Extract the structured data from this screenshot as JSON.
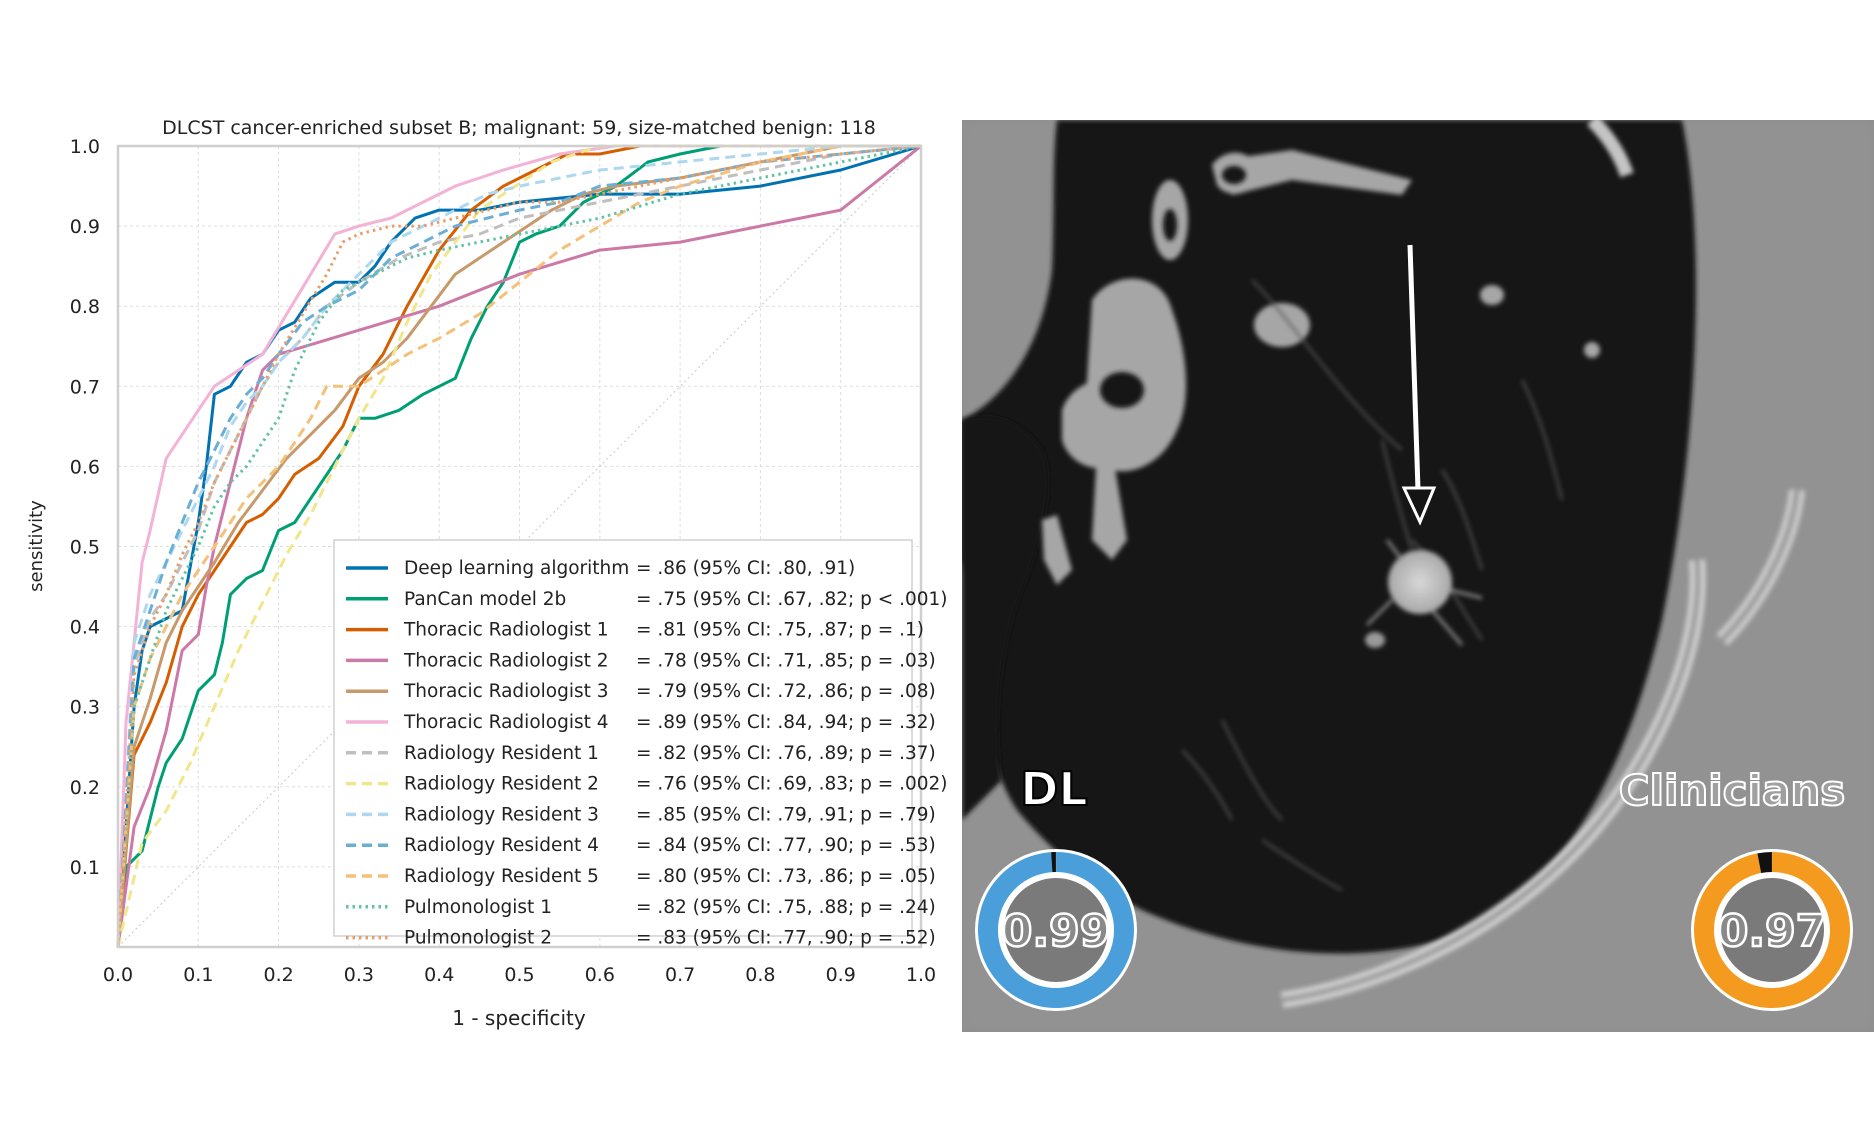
{
  "chart_data": {
    "type": "line",
    "title": "DLCST cancer-enriched subset B; malignant: 59, size-matched benign: 118",
    "xlabel": "1 - specificity",
    "ylabel": "sensitivity",
    "xlim": [
      0,
      1
    ],
    "ylim": [
      0,
      1
    ],
    "x_ticks": [
      "0.0",
      "0.1",
      "0.2",
      "0.3",
      "0.4",
      "0.5",
      "0.6",
      "0.7",
      "0.8",
      "0.9",
      "1.0"
    ],
    "y_ticks": [
      "0.1",
      "0.2",
      "0.3",
      "0.4",
      "0.5",
      "0.6",
      "0.7",
      "0.8",
      "0.9",
      "1.0"
    ],
    "grid": true,
    "legend_position": "bottom-right",
    "series": [
      {
        "name": "Deep learning algorithm",
        "stat": "= .86 (95% CI: .80, .91)",
        "color": "#0072B2",
        "dash": "solid",
        "x": [
          0,
          0.02,
          0.03,
          0.04,
          0.06,
          0.08,
          0.1,
          0.11,
          0.12,
          0.14,
          0.16,
          0.18,
          0.2,
          0.22,
          0.24,
          0.27,
          0.3,
          0.32,
          0.34,
          0.37,
          0.4,
          0.45,
          0.5,
          0.6,
          0.7,
          0.8,
          0.9,
          1.0
        ],
        "y": [
          0,
          0.3,
          0.37,
          0.4,
          0.41,
          0.42,
          0.53,
          0.6,
          0.69,
          0.7,
          0.73,
          0.74,
          0.77,
          0.78,
          0.81,
          0.83,
          0.83,
          0.85,
          0.88,
          0.91,
          0.92,
          0.92,
          0.93,
          0.94,
          0.94,
          0.95,
          0.97,
          1.0
        ]
      },
      {
        "name": "PanCan model 2b",
        "stat": "= .75 (95% CI: .67, .82; p < .001)",
        "color": "#009E73",
        "dash": "solid",
        "x": [
          0,
          0.01,
          0.02,
          0.03,
          0.05,
          0.06,
          0.08,
          0.1,
          0.12,
          0.13,
          0.14,
          0.16,
          0.18,
          0.2,
          0.22,
          0.24,
          0.26,
          0.28,
          0.3,
          0.32,
          0.35,
          0.38,
          0.4,
          0.42,
          0.44,
          0.46,
          0.48,
          0.5,
          0.52,
          0.55,
          0.58,
          0.62,
          0.66,
          0.7,
          0.75,
          0.8,
          0.9,
          1.0
        ],
        "y": [
          0,
          0.1,
          0.11,
          0.12,
          0.2,
          0.23,
          0.26,
          0.32,
          0.34,
          0.38,
          0.44,
          0.46,
          0.47,
          0.52,
          0.53,
          0.56,
          0.59,
          0.62,
          0.66,
          0.66,
          0.67,
          0.69,
          0.7,
          0.71,
          0.76,
          0.8,
          0.83,
          0.88,
          0.89,
          0.9,
          0.93,
          0.95,
          0.98,
          0.99,
          1.0,
          1.0,
          1.0,
          1.0
        ]
      },
      {
        "name": "Thoracic Radiologist 1",
        "stat": "= .81 (95% CI: .75, .87; p = .1)",
        "color": "#D55E00",
        "dash": "solid",
        "x": [
          0,
          0.02,
          0.04,
          0.06,
          0.08,
          0.1,
          0.12,
          0.14,
          0.16,
          0.18,
          0.2,
          0.22,
          0.25,
          0.28,
          0.3,
          0.33,
          0.36,
          0.4,
          0.44,
          0.48,
          0.52,
          0.56,
          0.6,
          0.65,
          0.7,
          0.8,
          0.9,
          1.0
        ],
        "y": [
          0,
          0.24,
          0.28,
          0.33,
          0.4,
          0.44,
          0.47,
          0.5,
          0.53,
          0.54,
          0.56,
          0.59,
          0.61,
          0.65,
          0.7,
          0.74,
          0.8,
          0.87,
          0.92,
          0.95,
          0.97,
          0.99,
          0.99,
          1.0,
          1.0,
          1.0,
          1.0,
          1.0
        ]
      },
      {
        "name": "Thoracic Radiologist 2",
        "stat": "= .78 (95% CI: .71, .85; p = .03)",
        "color": "#CC79A7",
        "dash": "solid",
        "x": [
          0,
          0.02,
          0.04,
          0.06,
          0.08,
          0.1,
          0.11,
          0.12,
          0.14,
          0.16,
          0.18,
          0.2,
          0.3,
          0.4,
          0.5,
          0.6,
          0.7,
          0.8,
          0.9,
          1.0
        ],
        "y": [
          0,
          0.15,
          0.2,
          0.27,
          0.37,
          0.39,
          0.45,
          0.5,
          0.58,
          0.66,
          0.72,
          0.74,
          0.77,
          0.8,
          0.84,
          0.87,
          0.88,
          0.9,
          0.92,
          1.0
        ]
      },
      {
        "name": "Thoracic Radiologist 3",
        "stat": "= .79 (95% CI: .72, .86; p = .08)",
        "color": "#C8996B",
        "dash": "solid",
        "x": [
          0,
          0.02,
          0.04,
          0.06,
          0.08,
          0.1,
          0.12,
          0.15,
          0.18,
          0.21,
          0.24,
          0.27,
          0.3,
          0.33,
          0.36,
          0.39,
          0.42,
          0.45,
          0.48,
          0.51,
          0.54,
          0.58,
          0.62,
          0.7,
          0.8,
          0.9,
          1.0
        ],
        "y": [
          0,
          0.25,
          0.31,
          0.38,
          0.42,
          0.45,
          0.48,
          0.53,
          0.57,
          0.61,
          0.64,
          0.67,
          0.71,
          0.73,
          0.76,
          0.8,
          0.84,
          0.86,
          0.88,
          0.9,
          0.92,
          0.94,
          0.95,
          0.96,
          0.98,
          1.0,
          1.0
        ]
      },
      {
        "name": "Thoracic Radiologist 4",
        "stat": "= .89 (95% CI: .84, .94; p = .32)",
        "color": "#F3B2D6",
        "dash": "solid",
        "x": [
          0,
          0.01,
          0.02,
          0.03,
          0.04,
          0.06,
          0.08,
          0.1,
          0.12,
          0.15,
          0.18,
          0.21,
          0.24,
          0.27,
          0.3,
          0.34,
          0.38,
          0.42,
          0.48,
          0.55,
          0.62,
          0.7,
          0.8,
          0.9,
          1.0
        ],
        "y": [
          0,
          0.28,
          0.38,
          0.48,
          0.52,
          0.61,
          0.64,
          0.67,
          0.7,
          0.72,
          0.74,
          0.79,
          0.84,
          0.89,
          0.9,
          0.91,
          0.93,
          0.95,
          0.97,
          0.99,
          1.0,
          1.0,
          1.0,
          1.0,
          1.0
        ]
      },
      {
        "name": "Radiology Resident 1",
        "stat": "= .82 (95% CI: .76, .89; p = .37)",
        "color": "#BFBFBF",
        "dash": "dashed",
        "x": [
          0,
          0.02,
          0.04,
          0.06,
          0.08,
          0.1,
          0.12,
          0.14,
          0.16,
          0.18,
          0.2,
          0.23,
          0.26,
          0.3,
          0.35,
          0.4,
          0.45,
          0.5,
          0.55,
          0.6,
          0.7,
          0.8,
          0.9,
          1.0
        ],
        "y": [
          0,
          0.35,
          0.41,
          0.44,
          0.48,
          0.52,
          0.58,
          0.62,
          0.66,
          0.7,
          0.73,
          0.76,
          0.8,
          0.83,
          0.86,
          0.88,
          0.89,
          0.91,
          0.92,
          0.93,
          0.95,
          0.97,
          0.99,
          1.0
        ]
      },
      {
        "name": "Radiology Resident 2",
        "stat": "= .76 (95% CI: .69, .83; p = .002)",
        "color": "#F0E68C",
        "dash": "dashed",
        "x": [
          0,
          0.03,
          0.06,
          0.09,
          0.12,
          0.15,
          0.18,
          0.21,
          0.24,
          0.27,
          0.3,
          0.33,
          0.36,
          0.39,
          0.42,
          0.45,
          0.48,
          0.51,
          0.54,
          0.57,
          0.6,
          0.62,
          0.64,
          0.66,
          0.7,
          0.8,
          0.9,
          1.0
        ],
        "y": [
          0,
          0.13,
          0.17,
          0.23,
          0.3,
          0.37,
          0.43,
          0.49,
          0.54,
          0.6,
          0.66,
          0.71,
          0.78,
          0.84,
          0.88,
          0.92,
          0.94,
          0.96,
          0.98,
          0.99,
          1.0,
          1.0,
          1.0,
          1.0,
          1.0,
          1.0,
          1.0,
          1.0
        ]
      },
      {
        "name": "Radiology Resident 3",
        "stat": "= .85 (95% CI: .79, .91; p = .79)",
        "color": "#ADD8F0",
        "dash": "dashed",
        "x": [
          0,
          0.02,
          0.04,
          0.06,
          0.08,
          0.1,
          0.12,
          0.14,
          0.16,
          0.18,
          0.2,
          0.23,
          0.26,
          0.3,
          0.34,
          0.38,
          0.42,
          0.46,
          0.5,
          0.55,
          0.6,
          0.7,
          0.8,
          0.9,
          1.0
        ],
        "y": [
          0,
          0.38,
          0.44,
          0.48,
          0.52,
          0.56,
          0.6,
          0.65,
          0.68,
          0.7,
          0.73,
          0.76,
          0.8,
          0.84,
          0.88,
          0.9,
          0.92,
          0.94,
          0.95,
          0.96,
          0.97,
          0.98,
          0.99,
          1.0,
          1.0
        ]
      },
      {
        "name": "Radiology Resident 4",
        "stat": "= .84 (95% CI: .77, .90; p = .53)",
        "color": "#6BAED6",
        "dash": "dashed",
        "x": [
          0,
          0.02,
          0.04,
          0.06,
          0.08,
          0.1,
          0.12,
          0.14,
          0.16,
          0.18,
          0.2,
          0.23,
          0.26,
          0.3,
          0.34,
          0.38,
          0.42,
          0.46,
          0.5,
          0.55,
          0.6,
          0.7,
          0.8,
          0.9,
          1.0
        ],
        "y": [
          0,
          0.36,
          0.42,
          0.48,
          0.53,
          0.58,
          0.62,
          0.66,
          0.69,
          0.71,
          0.74,
          0.78,
          0.8,
          0.82,
          0.86,
          0.88,
          0.9,
          0.91,
          0.92,
          0.93,
          0.95,
          0.96,
          0.98,
          0.99,
          1.0
        ]
      },
      {
        "name": "Radiology Resident 5",
        "stat": "= .80 (95% CI: .73, .86; p = .05)",
        "color": "#F5C07A",
        "dash": "dashed",
        "x": [
          0,
          0.02,
          0.04,
          0.06,
          0.08,
          0.1,
          0.12,
          0.14,
          0.16,
          0.18,
          0.2,
          0.22,
          0.24,
          0.26,
          0.3,
          0.33,
          0.36,
          0.4,
          0.45,
          0.5,
          0.55,
          0.6,
          0.65,
          0.7,
          0.8,
          0.9,
          1.0
        ],
        "y": [
          0,
          0.3,
          0.36,
          0.4,
          0.44,
          0.47,
          0.5,
          0.53,
          0.56,
          0.58,
          0.6,
          0.63,
          0.66,
          0.7,
          0.7,
          0.72,
          0.74,
          0.76,
          0.79,
          0.83,
          0.87,
          0.9,
          0.93,
          0.95,
          0.98,
          1.0,
          1.0
        ]
      },
      {
        "name": "Pulmonologist 1",
        "stat": "= .82 (95% CI: .75, .88; p = .24)",
        "color": "#66C2A5",
        "dash": "dotted",
        "x": [
          0,
          0.02,
          0.04,
          0.06,
          0.08,
          0.1,
          0.12,
          0.14,
          0.16,
          0.18,
          0.2,
          0.22,
          0.25,
          0.28,
          0.32,
          0.36,
          0.4,
          0.45,
          0.5,
          0.55,
          0.6,
          0.7,
          0.8,
          0.9,
          1.0
        ],
        "y": [
          0,
          0.3,
          0.36,
          0.42,
          0.46,
          0.5,
          0.55,
          0.58,
          0.6,
          0.63,
          0.66,
          0.72,
          0.78,
          0.82,
          0.84,
          0.86,
          0.87,
          0.88,
          0.89,
          0.9,
          0.91,
          0.94,
          0.96,
          0.98,
          1.0
        ]
      },
      {
        "name": "Pulmonologist 2",
        "stat": "= .83 (95% CI: .77, .90; p = .52)",
        "color": "#E69F6B",
        "dash": "dotted",
        "x": [
          0,
          0.02,
          0.04,
          0.06,
          0.08,
          0.1,
          0.12,
          0.14,
          0.16,
          0.18,
          0.2,
          0.23,
          0.26,
          0.28,
          0.3,
          0.34,
          0.38,
          0.42,
          0.46,
          0.5,
          0.55,
          0.6,
          0.7,
          0.8,
          0.9,
          1.0
        ],
        "y": [
          0,
          0.34,
          0.4,
          0.44,
          0.49,
          0.53,
          0.58,
          0.62,
          0.66,
          0.7,
          0.74,
          0.79,
          0.84,
          0.88,
          0.89,
          0.9,
          0.9,
          0.91,
          0.92,
          0.93,
          0.93,
          0.94,
          0.96,
          0.98,
          0.99,
          1.0
        ]
      }
    ]
  },
  "ct_image": {
    "dl_label": "DL",
    "dl_score": "0.99",
    "dl_value": 0.99,
    "dl_color": "#4A9FDA",
    "clinicians_label": "Clinicians",
    "clinicians_score": "0.97",
    "clinicians_value": 0.97,
    "clinicians_color": "#F39A1F"
  }
}
